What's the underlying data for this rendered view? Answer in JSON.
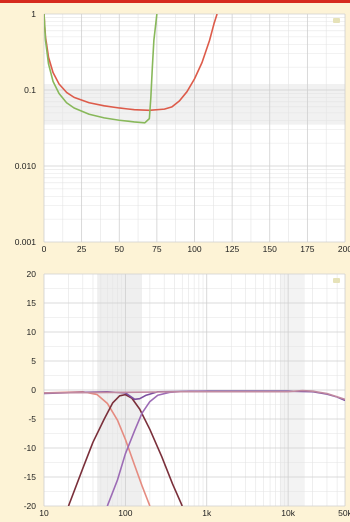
{
  "colors": {
    "page_bg": "#fdf3d6",
    "top_rule": "#d62a1e",
    "plot_bg": "#ffffff",
    "grid": "#cfcfcf",
    "grid_minor": "#e4e4e4",
    "band": "#ebebeb",
    "corner_mark": "#e6e2b8"
  },
  "chart_data": [
    {
      "type": "line",
      "title": "",
      "xlabel": "",
      "ylabel": "",
      "x_scale": "linear",
      "y_scale": "log",
      "xlim": [
        0,
        200
      ],
      "ylim": [
        0.001,
        1
      ],
      "grid": true,
      "x_ticks": [
        0,
        25,
        50,
        75,
        100,
        125,
        150,
        175,
        200
      ],
      "x_tick_labels": [
        "0",
        "25",
        "50",
        "75",
        "100",
        "125",
        "150",
        "175",
        "200"
      ],
      "y_ticks": [
        0.001,
        0.01,
        0.1,
        1
      ],
      "y_tick_labels": [
        "0.001",
        "0.010",
        "0.1",
        "1"
      ],
      "series": [
        {
          "color": "#dd5b4a",
          "points": [
            [
              0,
              1
            ],
            [
              1,
              0.5
            ],
            [
              3,
              0.27
            ],
            [
              6,
              0.17
            ],
            [
              10,
              0.12
            ],
            [
              15,
              0.093
            ],
            [
              20,
              0.08
            ],
            [
              30,
              0.068
            ],
            [
              40,
              0.062
            ],
            [
              50,
              0.058
            ],
            [
              60,
              0.055
            ],
            [
              70,
              0.054
            ],
            [
              80,
              0.056
            ],
            [
              85,
              0.06
            ],
            [
              90,
              0.072
            ],
            [
              95,
              0.095
            ],
            [
              100,
              0.14
            ],
            [
              105,
              0.23
            ],
            [
              110,
              0.45
            ],
            [
              113,
              0.75
            ],
            [
              115,
              1
            ]
          ]
        },
        {
          "color": "#88b85a",
          "points": [
            [
              0,
              1
            ],
            [
              1,
              0.45
            ],
            [
              3,
              0.22
            ],
            [
              6,
              0.13
            ],
            [
              10,
              0.09
            ],
            [
              15,
              0.068
            ],
            [
              20,
              0.058
            ],
            [
              30,
              0.048
            ],
            [
              40,
              0.043
            ],
            [
              50,
              0.04
            ],
            [
              60,
              0.038
            ],
            [
              67,
              0.037
            ],
            [
              70,
              0.042
            ],
            [
              71,
              0.08
            ],
            [
              72,
              0.2
            ],
            [
              73,
              0.45
            ],
            [
              75,
              1
            ]
          ]
        }
      ]
    },
    {
      "type": "line",
      "title": "",
      "xlabel": "",
      "ylabel": "",
      "x_scale": "log",
      "y_scale": "linear",
      "xlim": [
        10,
        50000
      ],
      "ylim": [
        -20,
        20
      ],
      "grid": true,
      "x_ticks": [
        10,
        100,
        1000,
        10000,
        50000
      ],
      "x_tick_labels": [
        "10",
        "100",
        "1k",
        "10k",
        "50k"
      ],
      "y_ticks": [
        20,
        15,
        10,
        5,
        0,
        -5,
        -10,
        -15,
        -20
      ],
      "y_tick_labels": [
        "20",
        "15",
        "10",
        "5",
        "0",
        "-5",
        "-10",
        "-15",
        "-20"
      ],
      "series": [
        {
          "color": "#e58b80",
          "points": [
            [
              10,
              -0.5
            ],
            [
              30,
              -0.3
            ],
            [
              45,
              -0.8
            ],
            [
              60,
              -2.3
            ],
            [
              80,
              -5.2
            ],
            [
              100,
              -8.5
            ],
            [
              130,
              -13
            ],
            [
              160,
              -16.5
            ],
            [
              200,
              -20
            ]
          ]
        },
        {
          "color": "#7a2f3a",
          "points": [
            [
              20,
              -20
            ],
            [
              30,
              -13.5
            ],
            [
              40,
              -9
            ],
            [
              55,
              -5
            ],
            [
              70,
              -2.2
            ],
            [
              85,
              -1
            ],
            [
              100,
              -0.8
            ],
            [
              120,
              -1.4
            ],
            [
              150,
              -3.3
            ],
            [
              200,
              -6.8
            ],
            [
              280,
              -11.5
            ],
            [
              380,
              -16.2
            ],
            [
              500,
              -20
            ]
          ]
        },
        {
          "color": "#7d4fa0",
          "points": [
            [
              10,
              -0.6
            ],
            [
              30,
              -0.4
            ],
            [
              60,
              -0.3
            ],
            [
              100,
              -0.5
            ],
            [
              130,
              -1.6
            ],
            [
              150,
              -1.5
            ],
            [
              180,
              -0.9
            ],
            [
              250,
              -0.3
            ],
            [
              1000,
              -0.2
            ],
            [
              10000,
              -0.2
            ],
            [
              20000,
              -0.3
            ],
            [
              30000,
              -0.7
            ],
            [
              40000,
              -1.2
            ],
            [
              50000,
              -1.8
            ]
          ]
        },
        {
          "color": "#9c6bb5",
          "points": [
            [
              60,
              -20
            ],
            [
              80,
              -15.5
            ],
            [
              100,
              -11
            ],
            [
              130,
              -7
            ],
            [
              160,
              -4
            ],
            [
              200,
              -2
            ],
            [
              250,
              -0.9
            ],
            [
              350,
              -0.4
            ],
            [
              600,
              -0.2
            ],
            [
              1000,
              -0.2
            ]
          ]
        },
        {
          "color": "#c28aa0",
          "points": [
            [
              10,
              -0.5
            ],
            [
              100,
              -0.4
            ],
            [
              500,
              -0.3
            ],
            [
              5000,
              -0.3
            ],
            [
              10000,
              -0.3
            ],
            [
              15000,
              -0.1
            ],
            [
              20000,
              -0.2
            ],
            [
              30000,
              -0.6
            ],
            [
              50000,
              -1.6
            ]
          ]
        }
      ]
    }
  ]
}
